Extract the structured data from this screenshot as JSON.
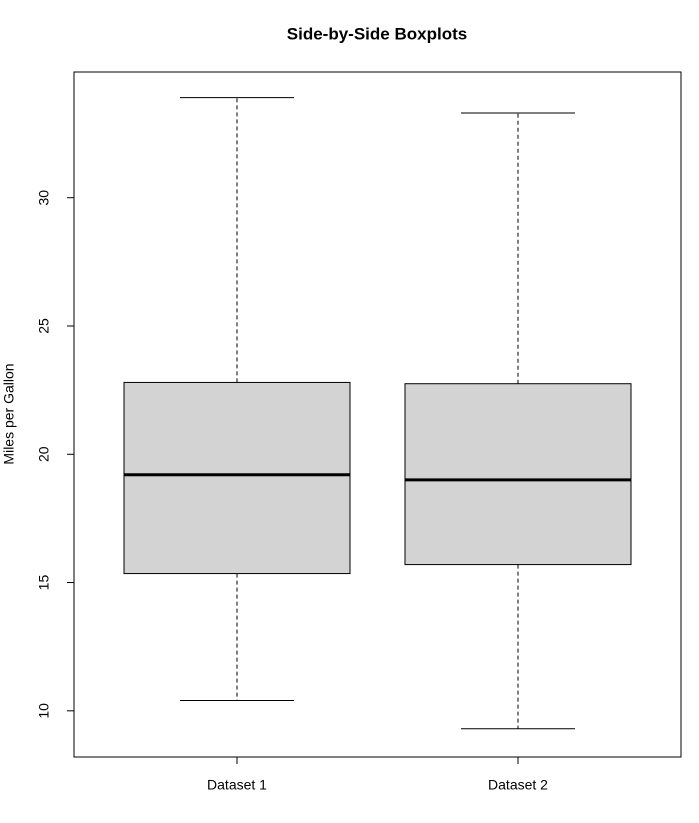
{
  "chart_data": {
    "type": "boxplot",
    "title": "Side-by-Side Boxplots",
    "y_label": "Miles per Gallon",
    "categories": [
      "Dataset 1",
      "Dataset 2"
    ],
    "boxes": [
      {
        "min": 10.4,
        "q1": 15.35,
        "median": 19.2,
        "q3": 22.8,
        "max": 33.9
      },
      {
        "min": 9.3,
        "q1": 15.7,
        "median": 19.0,
        "q3": 22.75,
        "max": 33.3
      }
    ],
    "color": "#d3d3d3",
    "ylim": [
      8.2,
      34.9
    ],
    "yticks": [
      10,
      15,
      20,
      25,
      30
    ]
  }
}
